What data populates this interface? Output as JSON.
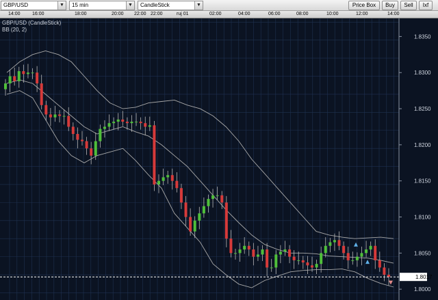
{
  "toolbar": {
    "symbol": "GBP/USD",
    "timeframe": "15 min",
    "chart_type": "CandleStick",
    "price_box_label": "Price Box",
    "buy_label": "Buy",
    "sell_label": "Sell",
    "extra_label": "Ixf"
  },
  "timeline": {
    "labels": [
      "14:00",
      "16:00",
      "18:00",
      "20:00",
      "22:00",
      "22:00",
      "ruj 01",
      "02:00",
      "04:00",
      "06:00",
      "08:00",
      "10:00",
      "12:00",
      "14:00"
    ]
  },
  "legend": {
    "instrument": "GBP/USD (CandleStick)",
    "indicator": "BB (20, 2)"
  },
  "current_price": "1.8017",
  "chart_data": {
    "type": "candlestick",
    "ylim": [
      1.7985,
      1.8375
    ],
    "y_ticks": [
      "1.8350",
      "1.8300",
      "1.8250",
      "1.8200",
      "1.8150",
      "1.8100",
      "1.8050",
      "1.8000"
    ],
    "x_tick_labels": [
      "14:00",
      "16:00",
      "18:00",
      "20:00",
      "22:00",
      "22:00",
      "ruj 01",
      "02:00",
      "04:00",
      "06:00",
      "08:00",
      "10:00",
      "12:00",
      "14:00"
    ],
    "current_price": 1.8017,
    "colors": {
      "background": "#0b1322",
      "grid": "#1f3150",
      "bull": "#4fbf3a",
      "bear": "#d63a3a",
      "wick": "#b9b9b9",
      "bands": "#a9a9a9",
      "price_line": "#ffffff",
      "arrow_up": "#5fb0e8",
      "arrow_down": "#e38a8a"
    },
    "close_series": [
      1.8285,
      1.8295,
      1.8288,
      1.8302,
      1.8298,
      1.83,
      1.83,
      1.8285,
      1.8255,
      1.8242,
      1.8238,
      1.8242,
      1.824,
      1.824,
      1.8225,
      1.8215,
      1.8207,
      1.8205,
      1.8195,
      1.8185,
      1.8205,
      1.8222,
      1.8225,
      1.823,
      1.8232,
      1.8235,
      1.8232,
      1.823,
      1.8232,
      1.8232,
      1.823,
      1.8225,
      1.8227,
      1.8145,
      1.815,
      1.8155,
      1.8158,
      1.815,
      1.814,
      1.812,
      1.81,
      1.808,
      1.8095,
      1.8105,
      1.8115,
      1.8125,
      1.813,
      1.813,
      1.812,
      1.807,
      1.805,
      1.805,
      1.8055,
      1.806,
      1.8055,
      1.8045,
      1.8048,
      1.8055,
      1.803,
      1.803,
      1.8048,
      1.8052,
      1.8055,
      1.8045,
      1.804,
      1.804,
      1.8037,
      1.8033,
      1.803,
      1.8035,
      1.805,
      1.806,
      1.8065,
      1.8068,
      1.806,
      1.805,
      1.804,
      1.804,
      1.8045,
      1.805,
      1.8055,
      1.806,
      1.804,
      1.803,
      1.802,
      1.8017
    ],
    "bollinger_bands": {
      "period": 20,
      "deviation": 2,
      "upper": [
        1.83,
        1.8315,
        1.8325,
        1.833,
        1.8325,
        1.8315,
        1.8295,
        1.8275,
        1.8258,
        1.825,
        1.8252,
        1.8258,
        1.826,
        1.8262,
        1.8255,
        1.825,
        1.824,
        1.8225,
        1.8205,
        1.818,
        1.816,
        1.814,
        1.812,
        1.81,
        1.808,
        1.8075,
        1.8072,
        1.807,
        1.8071,
        1.8072,
        1.807
      ],
      "middle": [
        1.8285,
        1.829,
        1.8285,
        1.827,
        1.8255,
        1.824,
        1.8225,
        1.8215,
        1.822,
        1.8225,
        1.8218,
        1.8212,
        1.82,
        1.8185,
        1.817,
        1.815,
        1.813,
        1.811,
        1.8092,
        1.8075,
        1.8062,
        1.8055,
        1.805,
        1.805,
        1.8049,
        1.8046,
        1.8045,
        1.8044,
        1.8043,
        1.804,
        1.8036
      ],
      "lower": [
        1.827,
        1.8275,
        1.8265,
        1.8235,
        1.8205,
        1.8185,
        1.8175,
        1.8185,
        1.819,
        1.8195,
        1.8178,
        1.8158,
        1.814,
        1.8105,
        1.8085,
        1.8065,
        1.8035,
        1.802,
        1.8007,
        1.8002,
        1.8012,
        1.8018,
        1.8024,
        1.8026,
        1.8027,
        1.8027,
        1.8028,
        1.8024,
        1.8015,
        1.8008,
        1.8003
      ]
    }
  }
}
